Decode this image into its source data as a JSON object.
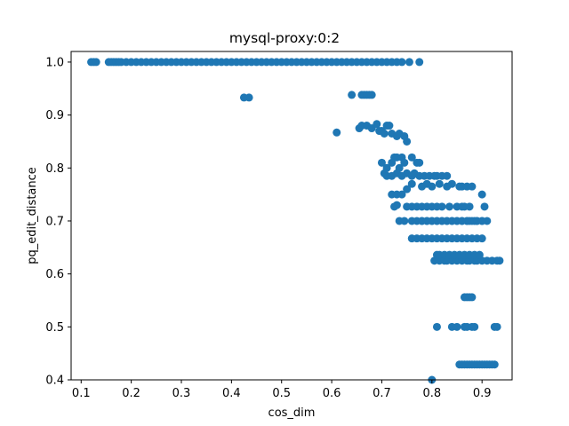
{
  "chart_data": {
    "type": "scatter",
    "title": "mysql-proxy:0:2",
    "xlabel": "cos_dim",
    "ylabel": "pq_edit_distance",
    "xlim": [
      0.08,
      0.96
    ],
    "ylim": [
      0.4,
      1.02
    ],
    "xticks": [
      0.1,
      0.2,
      0.3,
      0.4,
      0.5,
      0.6,
      0.7,
      0.8,
      0.9
    ],
    "yticks": [
      0.4,
      0.5,
      0.6,
      0.7,
      0.8,
      0.9,
      1.0
    ],
    "xtick_labels": [
      "0.1",
      "0.2",
      "0.3",
      "0.4",
      "0.5",
      "0.6",
      "0.7",
      "0.8",
      "0.9"
    ],
    "ytick_labels": [
      "0.4",
      "0.5",
      "0.6",
      "0.7",
      "0.8",
      "0.9",
      "1.0"
    ],
    "grid": false,
    "legend": "none",
    "marker_color": "#1f77b4",
    "series": [
      {
        "x": [
          0.12,
          0.125,
          0.13,
          0.155,
          0.16,
          0.165,
          0.17,
          0.175,
          0.18,
          0.19,
          0.2,
          0.21,
          0.22,
          0.23,
          0.24,
          0.25,
          0.26,
          0.27,
          0.28,
          0.29,
          0.3,
          0.31,
          0.32,
          0.33,
          0.34,
          0.35,
          0.36,
          0.37,
          0.38,
          0.39,
          0.4,
          0.41,
          0.42,
          0.43,
          0.44,
          0.45,
          0.46,
          0.47,
          0.48,
          0.49,
          0.5,
          0.51,
          0.52,
          0.53,
          0.54,
          0.55,
          0.56,
          0.57,
          0.58,
          0.59,
          0.6,
          0.61,
          0.62,
          0.63,
          0.64,
          0.65,
          0.66,
          0.67,
          0.68,
          0.69,
          0.7,
          0.71,
          0.72,
          0.73,
          0.74,
          0.755,
          0.775,
          0.425,
          0.435,
          0.61,
          0.64,
          0.66,
          0.665,
          0.67,
          0.675,
          0.68,
          0.655,
          0.66,
          0.67,
          0.68,
          0.69,
          0.695,
          0.7,
          0.705,
          0.71,
          0.715,
          0.72,
          0.73,
          0.735,
          0.745,
          0.75,
          0.7,
          0.71,
          0.72,
          0.725,
          0.73,
          0.735,
          0.74,
          0.745,
          0.76,
          0.77,
          0.775,
          0.705,
          0.71,
          0.72,
          0.73,
          0.74,
          0.75,
          0.76,
          0.765,
          0.775,
          0.785,
          0.795,
          0.805,
          0.81,
          0.82,
          0.83,
          0.72,
          0.73,
          0.74,
          0.75,
          0.76,
          0.78,
          0.79,
          0.8,
          0.815,
          0.83,
          0.84,
          0.855,
          0.86,
          0.87,
          0.88,
          0.725,
          0.73,
          0.75,
          0.76,
          0.77,
          0.78,
          0.79,
          0.8,
          0.81,
          0.82,
          0.835,
          0.85,
          0.86,
          0.865,
          0.875,
          0.9,
          0.78,
          0.79,
          0.8,
          0.81,
          0.82,
          0.83,
          0.84,
          0.85,
          0.86,
          0.87,
          0.88,
          0.89,
          0.9,
          0.91,
          0.735,
          0.745,
          0.76,
          0.77,
          0.78,
          0.79,
          0.8,
          0.81,
          0.82,
          0.83,
          0.84,
          0.85,
          0.86,
          0.87,
          0.875,
          0.885,
          0.89,
          0.9,
          0.905,
          0.76,
          0.77,
          0.78,
          0.79,
          0.8,
          0.81,
          0.82,
          0.83,
          0.84,
          0.85,
          0.86,
          0.87,
          0.88,
          0.89,
          0.9,
          0.805,
          0.815,
          0.825,
          0.83,
          0.84,
          0.85,
          0.86,
          0.87,
          0.875,
          0.885,
          0.89,
          0.9,
          0.91,
          0.92,
          0.93,
          0.935,
          0.81,
          0.815,
          0.825,
          0.835,
          0.845,
          0.855,
          0.865,
          0.875,
          0.885,
          0.895,
          0.865,
          0.87,
          0.875,
          0.88,
          0.81,
          0.84,
          0.85,
          0.865,
          0.87,
          0.88,
          0.885,
          0.925,
          0.93,
          0.8,
          0.855,
          0.86,
          0.865,
          0.87,
          0.875,
          0.88,
          0.885,
          0.89,
          0.895,
          0.9,
          0.905,
          0.91,
          0.915,
          0.92,
          0.925
        ],
        "y": [
          1.0,
          1.0,
          1.0,
          1.0,
          1.0,
          1.0,
          1.0,
          1.0,
          1.0,
          1.0,
          1.0,
          1.0,
          1.0,
          1.0,
          1.0,
          1.0,
          1.0,
          1.0,
          1.0,
          1.0,
          1.0,
          1.0,
          1.0,
          1.0,
          1.0,
          1.0,
          1.0,
          1.0,
          1.0,
          1.0,
          1.0,
          1.0,
          1.0,
          1.0,
          1.0,
          1.0,
          1.0,
          1.0,
          1.0,
          1.0,
          1.0,
          1.0,
          1.0,
          1.0,
          1.0,
          1.0,
          1.0,
          1.0,
          1.0,
          1.0,
          1.0,
          1.0,
          1.0,
          1.0,
          1.0,
          1.0,
          1.0,
          1.0,
          1.0,
          1.0,
          1.0,
          1.0,
          1.0,
          1.0,
          1.0,
          1.0,
          1.0,
          0.933,
          0.933,
          0.867,
          0.938,
          0.938,
          0.938,
          0.938,
          0.938,
          0.938,
          0.875,
          0.88,
          0.88,
          0.875,
          0.883,
          0.87,
          0.87,
          0.865,
          0.88,
          0.88,
          0.865,
          0.86,
          0.865,
          0.86,
          0.85,
          0.81,
          0.8,
          0.81,
          0.82,
          0.82,
          0.8,
          0.82,
          0.81,
          0.82,
          0.81,
          0.81,
          0.79,
          0.785,
          0.785,
          0.79,
          0.785,
          0.79,
          0.785,
          0.79,
          0.785,
          0.785,
          0.785,
          0.785,
          0.785,
          0.785,
          0.785,
          0.75,
          0.75,
          0.75,
          0.76,
          0.77,
          0.765,
          0.77,
          0.765,
          0.77,
          0.765,
          0.77,
          0.765,
          0.765,
          0.765,
          0.765,
          0.727,
          0.73,
          0.727,
          0.727,
          0.727,
          0.727,
          0.727,
          0.727,
          0.727,
          0.727,
          0.727,
          0.727,
          0.727,
          0.727,
          0.727,
          0.75,
          0.7,
          0.7,
          0.7,
          0.7,
          0.7,
          0.7,
          0.7,
          0.7,
          0.7,
          0.7,
          0.7,
          0.7,
          0.7,
          0.7,
          0.7,
          0.7,
          0.7,
          0.7,
          0.7,
          0.7,
          0.7,
          0.7,
          0.7,
          0.7,
          0.7,
          0.7,
          0.7,
          0.7,
          0.7,
          0.7,
          0.7,
          0.7,
          0.727,
          0.667,
          0.667,
          0.667,
          0.667,
          0.667,
          0.667,
          0.667,
          0.667,
          0.667,
          0.667,
          0.667,
          0.667,
          0.667,
          0.667,
          0.667,
          0.625,
          0.625,
          0.625,
          0.625,
          0.625,
          0.625,
          0.625,
          0.625,
          0.625,
          0.625,
          0.625,
          0.625,
          0.625,
          0.625,
          0.625,
          0.625,
          0.636,
          0.636,
          0.636,
          0.636,
          0.636,
          0.636,
          0.636,
          0.636,
          0.636,
          0.636,
          0.556,
          0.556,
          0.556,
          0.556,
          0.5,
          0.5,
          0.5,
          0.5,
          0.5,
          0.5,
          0.5,
          0.5,
          0.5,
          0.4,
          0.429,
          0.429,
          0.429,
          0.429,
          0.429,
          0.429,
          0.429,
          0.429,
          0.429,
          0.429,
          0.429,
          0.429,
          0.429,
          0.429,
          0.429
        ]
      }
    ]
  }
}
